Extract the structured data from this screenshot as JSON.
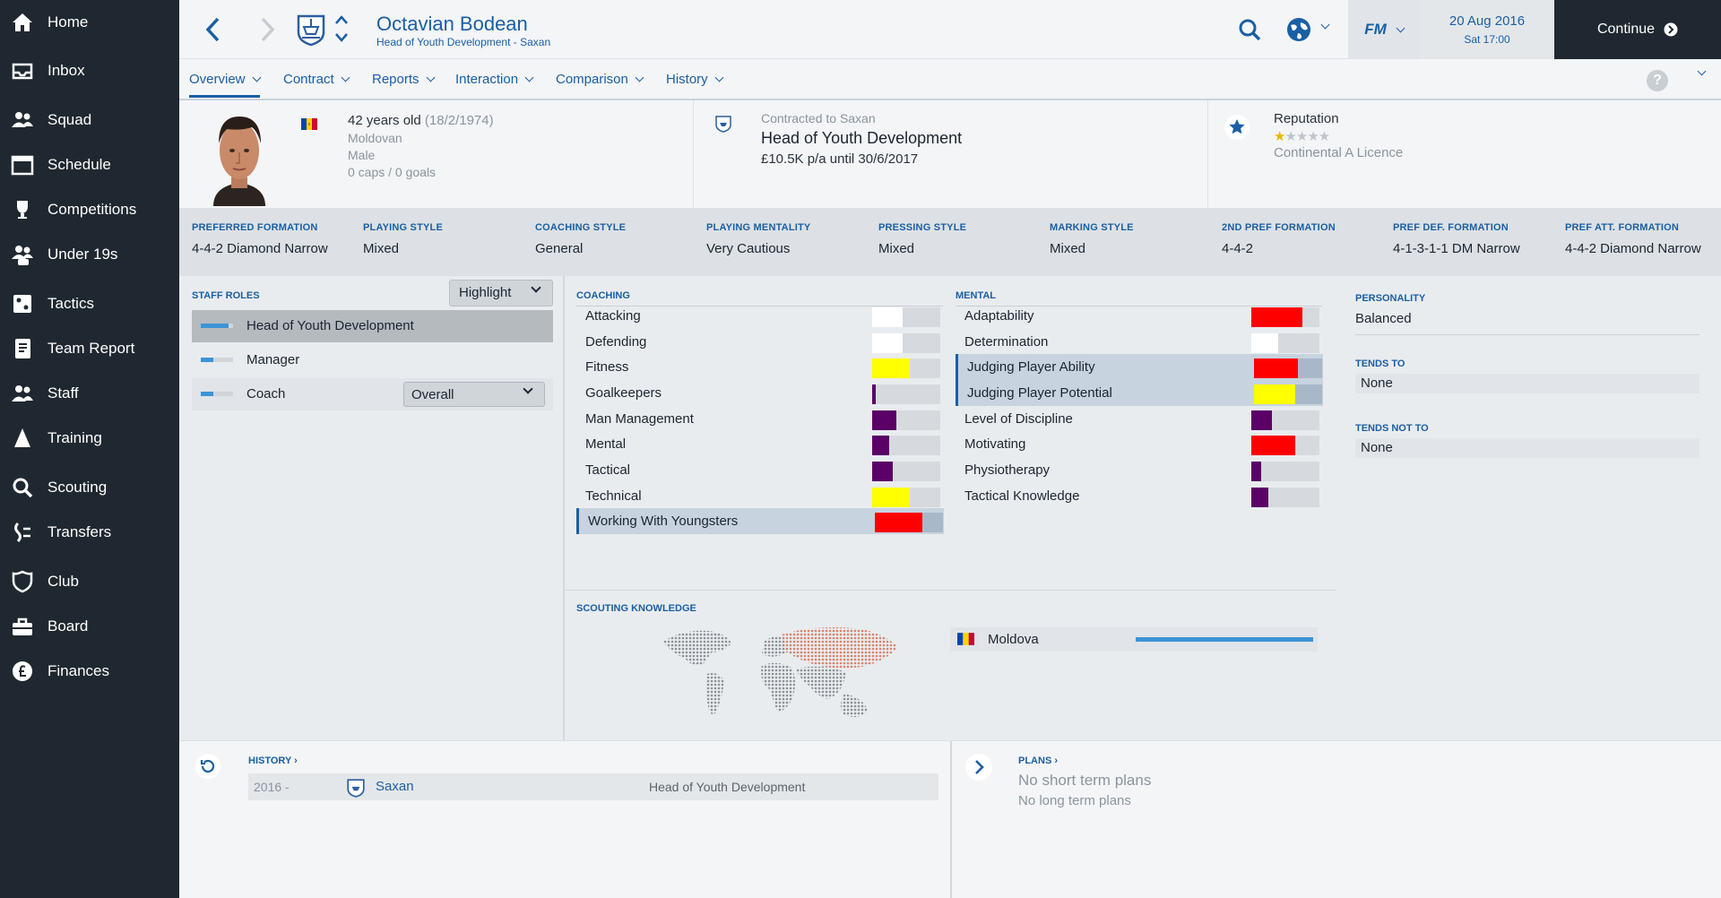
{
  "sidebar": {
    "items": [
      {
        "label": "Home",
        "icon": "home-icon"
      },
      {
        "label": "Inbox",
        "icon": "inbox-icon"
      },
      {
        "label": "Squad",
        "icon": "squad-icon"
      },
      {
        "label": "Schedule",
        "icon": "calendar-icon"
      },
      {
        "label": "Competitions",
        "icon": "trophy-icon"
      },
      {
        "label": "Under 19s",
        "icon": "u19-icon"
      },
      {
        "label": "Tactics",
        "icon": "tactics-icon"
      },
      {
        "label": "Team Report",
        "icon": "report-icon"
      },
      {
        "label": "Staff",
        "icon": "staff-icon"
      },
      {
        "label": "Training",
        "icon": "training-icon"
      },
      {
        "label": "Scouting",
        "icon": "search-icon"
      },
      {
        "label": "Transfers",
        "icon": "transfers-icon"
      },
      {
        "label": "Club",
        "icon": "club-icon"
      },
      {
        "label": "Board",
        "icon": "board-icon"
      },
      {
        "label": "Finances",
        "icon": "finances-icon"
      }
    ]
  },
  "header": {
    "name": "Octavian Bodean",
    "subtitle": "Head of Youth Development - Saxan",
    "fm_label": "FM",
    "date": "20 Aug 2016",
    "time": "Sat 17:00",
    "continue_label": "Continue"
  },
  "tabs": [
    "Overview",
    "Contract",
    "Reports",
    "Interaction",
    "Comparison",
    "History"
  ],
  "profile": {
    "age": "42 years old",
    "dob": "(18/2/1974)",
    "nationality": "Moldovan",
    "gender": "Male",
    "caps": "0 caps / 0 goals",
    "contracted_to": "Contracted to Saxan",
    "job": "Head of Youth Development",
    "wage": "£10.5K p/a until 30/6/2017",
    "reputation_label": "Reputation",
    "reputation_stars": 1,
    "reputation_max": 5,
    "licence": "Continental A Licence"
  },
  "tactics": [
    {
      "label": "PREFERRED FORMATION",
      "value": "4-4-2 Diamond Narrow"
    },
    {
      "label": "PLAYING STYLE",
      "value": "Mixed"
    },
    {
      "label": "COACHING STYLE",
      "value": "General"
    },
    {
      "label": "PLAYING MENTALITY",
      "value": "Very Cautious"
    },
    {
      "label": "PRESSING STYLE",
      "value": "Mixed"
    },
    {
      "label": "MARKING STYLE",
      "value": "Mixed"
    },
    {
      "label": "2ND PREF FORMATION",
      "value": "4-4-2"
    },
    {
      "label": "PREF DEF. FORMATION",
      "value": "4-1-3-1-1 DM Narrow"
    },
    {
      "label": "PREF ATT. FORMATION",
      "value": "4-4-2 Diamond Narrow"
    }
  ],
  "roles": {
    "title": "STAFF ROLES",
    "highlight_label": "Highlight",
    "items": [
      {
        "label": "Head of Youth Development",
        "level": 0.85
      },
      {
        "label": "Manager",
        "level": 0.4
      },
      {
        "label": "Coach",
        "level": 0.4
      }
    ],
    "coach_option": "Overall"
  },
  "coaching": {
    "title": "COACHING",
    "items": [
      {
        "label": "Attacking",
        "level": 0.45,
        "color": "#ffffff"
      },
      {
        "label": "Defending",
        "level": 0.45,
        "color": "#ffffff"
      },
      {
        "label": "Fitness",
        "level": 0.55,
        "color": "#ffff00"
      },
      {
        "label": "Goalkeepers",
        "level": 0.05,
        "color": "#5a0066"
      },
      {
        "label": "Man Management",
        "level": 0.35,
        "color": "#5a0066"
      },
      {
        "label": "Mental",
        "level": 0.25,
        "color": "#5a0066"
      },
      {
        "label": "Tactical",
        "level": 0.3,
        "color": "#5a0066"
      },
      {
        "label": "Technical",
        "level": 0.55,
        "color": "#ffff00"
      },
      {
        "label": "Working With Youngsters",
        "level": 0.7,
        "color": "#ff0000",
        "highlight": true
      }
    ]
  },
  "mental": {
    "title": "MENTAL",
    "items": [
      {
        "label": "Adaptability",
        "level": 0.75,
        "color": "#ff0000"
      },
      {
        "label": "Determination",
        "level": 0.4,
        "color": "#ffffff"
      },
      {
        "label": "Judging Player Ability",
        "level": 0.65,
        "color": "#ff0000",
        "highlight": true
      },
      {
        "label": "Judging Player Potential",
        "level": 0.6,
        "color": "#ffff00",
        "highlight": true
      },
      {
        "label": "Level of Discipline",
        "level": 0.3,
        "color": "#5a0066"
      },
      {
        "label": "Motivating",
        "level": 0.65,
        "color": "#ff0000"
      },
      {
        "label": "Physiotherapy",
        "level": 0.15,
        "color": "#5a0066"
      },
      {
        "label": "Tactical Knowledge",
        "level": 0.25,
        "color": "#5a0066"
      }
    ]
  },
  "personality": {
    "title": "PERSONALITY",
    "value": "Balanced",
    "tends_to_title": "TENDS TO",
    "tends_to": "None",
    "tends_not_title": "TENDS NOT TO",
    "tends_not": "None"
  },
  "scouting": {
    "title": "SCOUTING KNOWLEDGE",
    "country": "Moldova",
    "knowledge": 1.0
  },
  "history": {
    "title": "HISTORY",
    "year": "2016 -",
    "club": "Saxan",
    "role": "Head of Youth Development"
  },
  "plans": {
    "title": "PLANS",
    "short": "No short term plans",
    "long": "No long term plans"
  },
  "colors": {
    "accent": "#1a5fa3",
    "sidebar": "#1f2830",
    "bar_blue": "#3c94d6"
  }
}
